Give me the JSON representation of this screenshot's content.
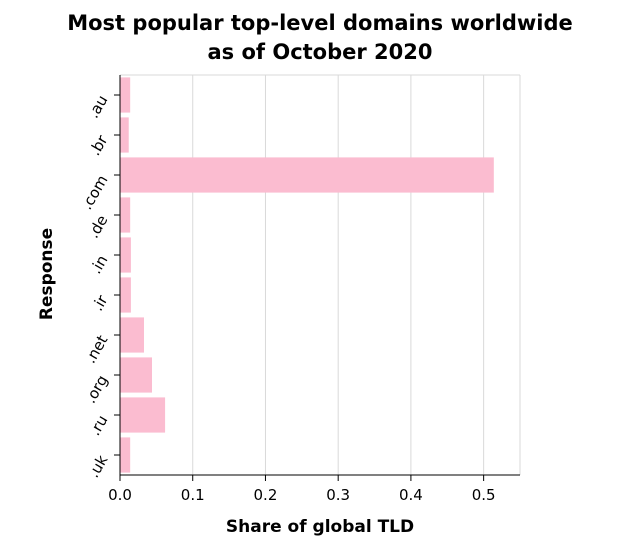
{
  "chart_data": {
    "type": "bar",
    "orientation": "horizontal",
    "title": "Most popular top-level domains worldwide as of October 2020",
    "title_lines": [
      "Most popular top-level domains worldwide",
      "as of October 2020"
    ],
    "xlabel": "Share of global TLD",
    "ylabel": "Response",
    "categories": [
      ".au",
      ".br",
      ".com",
      ".de",
      ".in",
      ".ir",
      ".net",
      ".org",
      ".ru",
      ".uk"
    ],
    "values": [
      0.014,
      0.012,
      0.514,
      0.014,
      0.015,
      0.015,
      0.033,
      0.044,
      0.062,
      0.014
    ],
    "xlim": [
      0,
      0.55
    ],
    "xticks": [
      0.0,
      0.1,
      0.2,
      0.3,
      0.4,
      0.5
    ],
    "xtick_labels": [
      "0.0",
      "0.1",
      "0.2",
      "0.3",
      "0.4",
      "0.5"
    ],
    "grid": "vertical",
    "bar_color": "#fbbcd0"
  }
}
